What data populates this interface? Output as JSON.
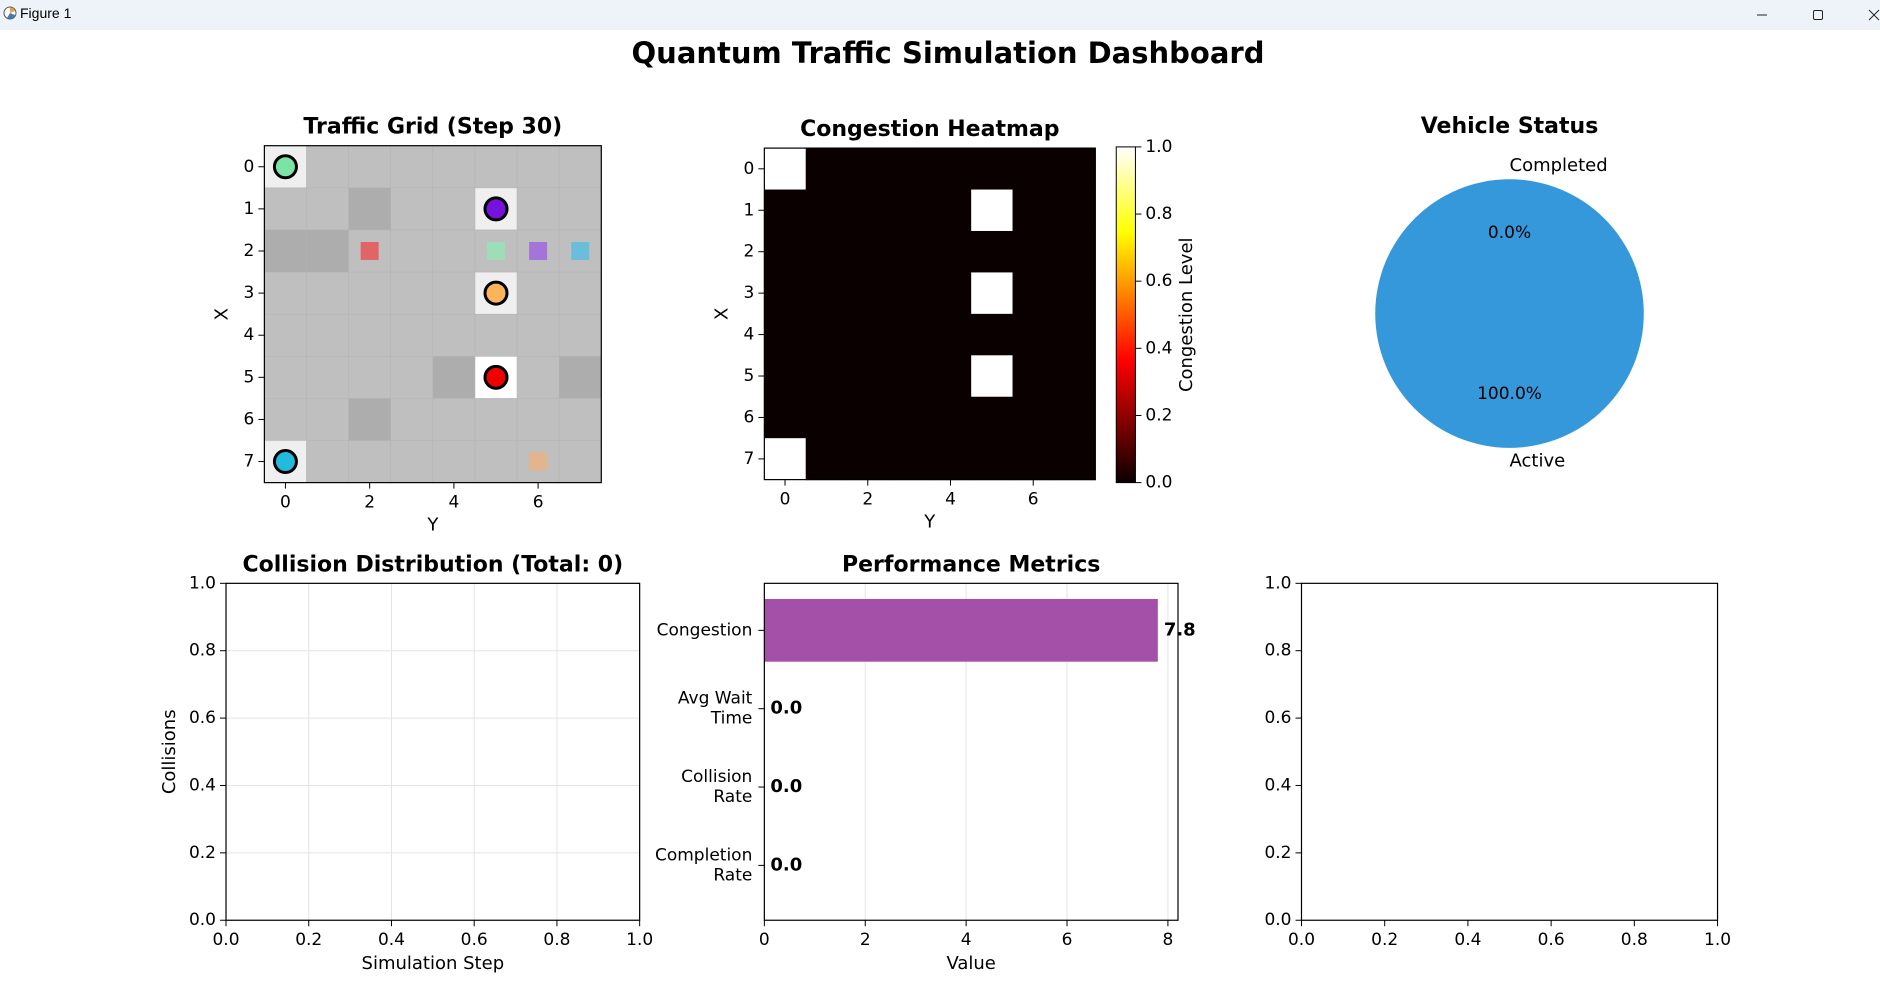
{
  "window": {
    "title": "Figure 1",
    "icons": {
      "app": "matplotlib-icon",
      "minimize": "minimize-icon",
      "maximize": "maximize-icon",
      "close": "close-icon"
    }
  },
  "figure": {
    "suptitle": "Quantum Traffic Simulation Dashboard"
  },
  "chart_data": [
    {
      "id": "grid",
      "type": "heatmap",
      "title": "Traffic Grid (Step 30)",
      "xlabel": "Y",
      "ylabel": "X",
      "xticks": [
        0,
        2,
        4,
        6
      ],
      "yticks": [
        0,
        1,
        2,
        3,
        4,
        5,
        6,
        7
      ],
      "size": [
        8,
        8
      ],
      "background": "#bfbfbf",
      "cells": [
        {
          "x": 0,
          "y": 0,
          "color": "#efefef"
        },
        {
          "x": 5,
          "y": 1,
          "color": "#efefef"
        },
        {
          "x": 5,
          "y": 3,
          "color": "#efefef"
        },
        {
          "x": 5,
          "y": 5,
          "color": "#ffffff"
        },
        {
          "x": 0,
          "y": 7,
          "color": "#efefef"
        },
        {
          "x": 2,
          "y": 1,
          "color": "#adadad"
        },
        {
          "x": 0,
          "y": 2,
          "color": "#adadad"
        },
        {
          "x": 1,
          "y": 2,
          "color": "#adadad"
        },
        {
          "x": 4,
          "y": 5,
          "color": "#adadad"
        },
        {
          "x": 7,
          "y": 5,
          "color": "#adadad"
        },
        {
          "x": 2,
          "y": 6,
          "color": "#adadad"
        }
      ],
      "vehicles": [
        {
          "x": 0,
          "y": 0,
          "color": "#7be3a6"
        },
        {
          "x": 5,
          "y": 1,
          "color": "#7711dd"
        },
        {
          "x": 5,
          "y": 3,
          "color": "#ffb35a"
        },
        {
          "x": 5,
          "y": 5,
          "color": "#ee0000"
        },
        {
          "x": 0,
          "y": 7,
          "color": "#22bbdd"
        }
      ],
      "destinations": [
        {
          "x": 2,
          "y": 2,
          "color": "#e85555"
        },
        {
          "x": 5,
          "y": 2,
          "color": "#96e2b6"
        },
        {
          "x": 6,
          "y": 2,
          "color": "#a066dd"
        },
        {
          "x": 7,
          "y": 2,
          "color": "#5bbde0"
        },
        {
          "x": 6,
          "y": 7,
          "color": "#e9b384"
        }
      ],
      "grid": true
    },
    {
      "id": "heatmap",
      "type": "heatmap",
      "title": "Congestion Heatmap",
      "xlabel": "Y",
      "ylabel": "X",
      "colorbar_label": "Congestion Level",
      "colormap": "hot",
      "vmin": 0.0,
      "vmax": 1.0,
      "colorbar_ticks": [
        "0.0",
        "0.2",
        "0.4",
        "0.6",
        "0.8",
        "1.0"
      ],
      "xticks": [
        0,
        2,
        4,
        6
      ],
      "yticks": [
        0,
        1,
        2,
        3,
        4,
        5,
        6,
        7
      ],
      "values": [
        [
          1,
          0,
          0,
          0,
          0,
          0,
          0,
          0
        ],
        [
          0,
          0,
          0,
          0,
          0,
          1,
          0,
          0
        ],
        [
          0,
          0,
          0,
          0,
          0,
          0,
          0,
          0
        ],
        [
          0,
          0,
          0,
          0,
          0,
          1,
          0,
          0
        ],
        [
          0,
          0,
          0,
          0,
          0,
          0,
          0,
          0
        ],
        [
          0,
          0,
          0,
          0,
          0,
          1,
          0,
          0
        ],
        [
          0,
          0,
          0,
          0,
          0,
          0,
          0,
          0
        ],
        [
          1,
          0,
          0,
          0,
          0,
          0,
          0,
          0
        ]
      ]
    },
    {
      "id": "pie",
      "type": "pie",
      "title": "Vehicle Status",
      "labels": [
        "Active",
        "Completed"
      ],
      "values": [
        100.0,
        0.0
      ],
      "pct_labels": [
        "100.0%",
        "0.0%"
      ],
      "colors": [
        "#3498db",
        "#2ecc71"
      ]
    },
    {
      "id": "collisions",
      "type": "bar",
      "title": "Collision Distribution (Total: 0)",
      "xlabel": "Simulation Step",
      "ylabel": "Collisions",
      "xlim": [
        0,
        1
      ],
      "ylim": [
        0,
        1
      ],
      "ticks": [
        "0.0",
        "0.2",
        "0.4",
        "0.6",
        "0.8",
        "1.0"
      ],
      "values": [],
      "grid": true
    },
    {
      "id": "metrics",
      "type": "bar",
      "orientation": "horizontal",
      "title": "Performance Metrics",
      "xlabel": "Value",
      "xlim": [
        0,
        8.2
      ],
      "xticks": [
        0,
        2,
        4,
        6,
        8
      ],
      "categories": [
        "Congestion",
        "Avg Wait\nTime",
        "Collision\nRate",
        "Completion\nRate"
      ],
      "values": [
        7.8,
        0.0,
        0.0,
        0.0
      ],
      "value_labels": [
        "7.8",
        "0.0",
        "0.0",
        "0.0"
      ],
      "color": "#a24ba6",
      "grid": true
    },
    {
      "id": "empty",
      "type": "line",
      "xlim": [
        0,
        1
      ],
      "ylim": [
        0,
        1
      ],
      "ticks": [
        "0.0",
        "0.2",
        "0.4",
        "0.6",
        "0.8",
        "1.0"
      ],
      "series": []
    }
  ]
}
